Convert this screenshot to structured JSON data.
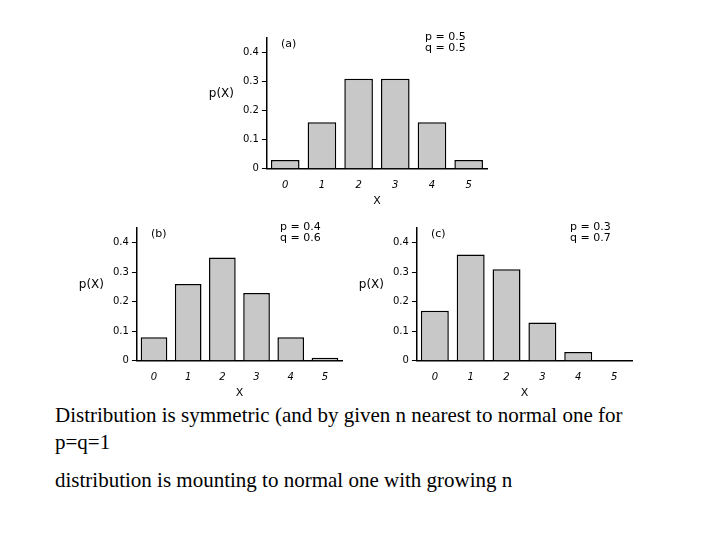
{
  "chart_data": [
    {
      "type": "bar",
      "title": "(a)",
      "annotations": [
        "p = 0.5",
        "q = 0.5"
      ],
      "x_label": "X",
      "y_label": "p(X)",
      "categories": [
        "0",
        "1",
        "2",
        "3",
        "4",
        "5"
      ],
      "values": [
        0.03,
        0.16,
        0.31,
        0.31,
        0.16,
        0.03
      ],
      "color": "#c8c8c8",
      "ylim": [
        0,
        0.45
      ],
      "yticks": [
        0,
        0.1,
        0.2,
        0.3,
        0.4
      ],
      "grid": false
    },
    {
      "type": "bar",
      "title": "(b)",
      "annotations": [
        "p = 0.4",
        "q = 0.6"
      ],
      "x_label": "X",
      "y_label": "p(X)",
      "categories": [
        "0",
        "1",
        "2",
        "3",
        "4",
        "5"
      ],
      "values": [
        0.08,
        0.26,
        0.35,
        0.23,
        0.08,
        0.01
      ],
      "color": "#c8c8c8",
      "ylim": [
        0,
        0.45
      ],
      "yticks": [
        0,
        0.1,
        0.2,
        0.3,
        0.4
      ],
      "grid": false
    },
    {
      "type": "bar",
      "title": "(c)",
      "annotations": [
        "p = 0.3",
        "q = 0.7"
      ],
      "x_label": "X",
      "y_label": "p(X)",
      "categories": [
        "0",
        "1",
        "2",
        "3",
        "4",
        "5"
      ],
      "values": [
        0.17,
        0.36,
        0.31,
        0.13,
        0.03,
        0.002
      ],
      "color": "#c8c8c8",
      "ylim": [
        0,
        0.45
      ],
      "yticks": [
        0,
        0.1,
        0.2,
        0.3,
        0.4
      ],
      "grid": false
    }
  ],
  "caption": [
    "Distribution is symmetric (and by given n nearest to normal one for p=q=1",
    "distribution is mounting to normal one with growing n"
  ]
}
